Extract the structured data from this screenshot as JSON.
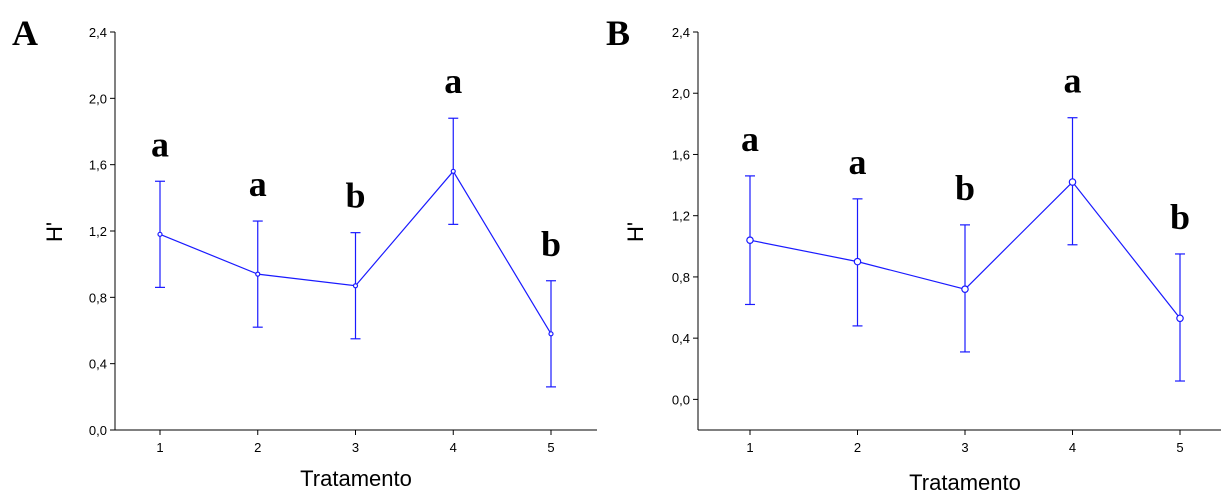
{
  "chart_data": [
    {
      "panel": "A",
      "type": "line",
      "xlabel": "Tratamento",
      "ylabel": "H'",
      "x_ticks": [
        "1",
        "2",
        "3",
        "4",
        "5"
      ],
      "y_ticks": [
        "0,0",
        "0,4",
        "0,8",
        "1,2",
        "1,6",
        "2,0",
        "2,4"
      ],
      "ylim": [
        0,
        2.4
      ],
      "grid": false,
      "line_color": "#1a1aff",
      "points": [
        {
          "x": 1,
          "mean": 1.18,
          "low": 0.86,
          "high": 1.5,
          "letter": "a"
        },
        {
          "x": 2,
          "mean": 0.94,
          "low": 0.62,
          "high": 1.26,
          "letter": "a"
        },
        {
          "x": 3,
          "mean": 0.87,
          "low": 0.55,
          "high": 1.19,
          "letter": "b"
        },
        {
          "x": 4,
          "mean": 1.56,
          "low": 1.24,
          "high": 1.88,
          "letter": "a"
        },
        {
          "x": 5,
          "mean": 0.58,
          "low": 0.26,
          "high": 0.9,
          "letter": "b"
        }
      ]
    },
    {
      "panel": "B",
      "type": "line",
      "xlabel": "Tratamento",
      "ylabel": "H'",
      "x_ticks": [
        "1",
        "2",
        "3",
        "4",
        "5"
      ],
      "y_ticks": [
        "0,0",
        "0,4",
        "0,8",
        "1,2",
        "1,6",
        "2,0",
        "2,4"
      ],
      "ylim": [
        -0.2,
        2.4
      ],
      "grid": false,
      "line_color": "#1a1aff",
      "points": [
        {
          "x": 1,
          "mean": 1.04,
          "low": 0.62,
          "high": 1.46,
          "letter": "a"
        },
        {
          "x": 2,
          "mean": 0.9,
          "low": 0.48,
          "high": 1.31,
          "letter": "a"
        },
        {
          "x": 3,
          "mean": 0.72,
          "low": 0.31,
          "high": 1.14,
          "letter": "b"
        },
        {
          "x": 4,
          "mean": 1.42,
          "low": 1.01,
          "high": 1.84,
          "letter": "a"
        },
        {
          "x": 5,
          "mean": 0.53,
          "low": 0.12,
          "high": 0.95,
          "letter": "b"
        }
      ]
    }
  ]
}
